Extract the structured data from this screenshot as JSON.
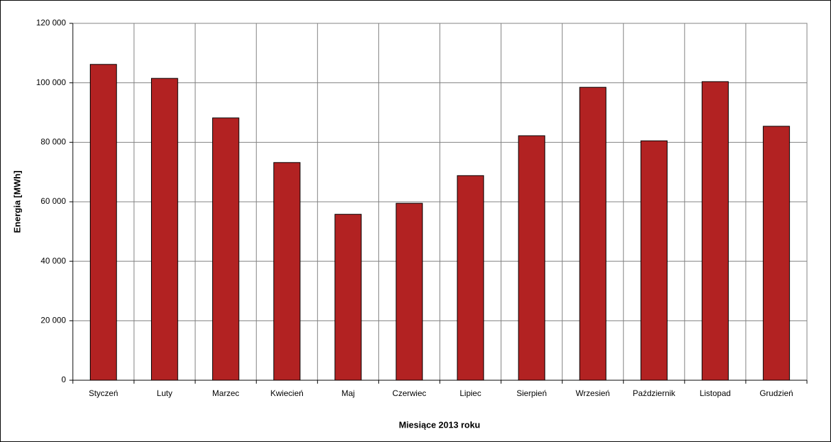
{
  "chart_data": {
    "type": "bar",
    "x_label": "Miesiące 2013 roku",
    "y_label": "Energia [MWh]",
    "categories": [
      "Styczeń",
      "Luty",
      "Marzec",
      "Kwiecień",
      "Maj",
      "Czerwiec",
      "Lipiec",
      "Sierpień",
      "Wrzesień",
      "Październik",
      "Listopad",
      "Grudzień"
    ],
    "values": [
      106200,
      101500,
      88200,
      73200,
      55800,
      59500,
      68800,
      82200,
      98500,
      80500,
      100400,
      85400
    ],
    "color": "#b22222",
    "ylim": [
      0,
      120000
    ],
    "yticks": [
      0,
      {
        "value": 20000,
        "label": "20 000"
      },
      {
        "value": 40000,
        "label": "40 000"
      },
      {
        "value": 60000,
        "label": "60 000"
      },
      {
        "value": 80000,
        "label": "80 000"
      },
      {
        "value": 100000,
        "label": "100 000"
      },
      {
        "value": 120000,
        "label": "120 000"
      }
    ],
    "grid": true
  }
}
